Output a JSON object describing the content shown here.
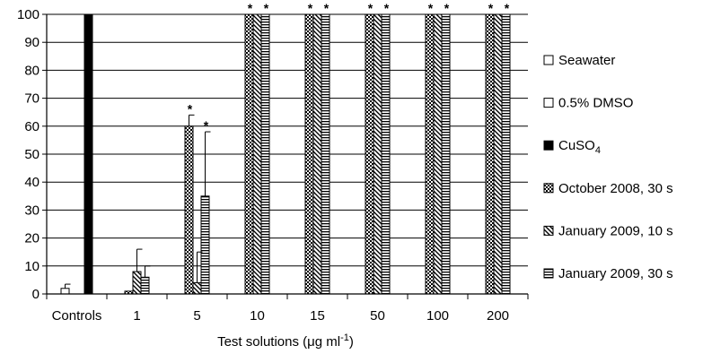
{
  "chart_data": {
    "type": "bar",
    "title": "",
    "xlabel": "Test solutions (μg ml⁻¹)",
    "xlabel_parts": {
      "main": "Test solutions (μg ml",
      "sup": "-1",
      "close": ")"
    },
    "ylabel": "",
    "ylim": [
      0,
      100
    ],
    "yticks": [
      0,
      10,
      20,
      30,
      40,
      50,
      60,
      70,
      80,
      90,
      100
    ],
    "grid": "horizontal",
    "legend_position": "right",
    "categories": [
      "Controls",
      "1",
      "5",
      "10",
      "15",
      "50",
      "100",
      "200"
    ],
    "series": [
      {
        "name": "Seawater",
        "name_main": "Seawater",
        "name_sub": "",
        "pattern": "white",
        "values": [
          2,
          null,
          null,
          null,
          null,
          null,
          null,
          null
        ],
        "errors": [
          1.5,
          null,
          null,
          null,
          null,
          null,
          null,
          null
        ]
      },
      {
        "name": "0.5% DMSO",
        "name_main": "0.5% DMSO",
        "name_sub": "",
        "pattern": "white",
        "values": [
          0,
          null,
          null,
          null,
          null,
          null,
          null,
          null
        ],
        "errors": [
          null,
          null,
          null,
          null,
          null,
          null,
          null,
          null
        ]
      },
      {
        "name": "CuSO4",
        "name_main": "CuSO",
        "name_sub": "4",
        "pattern": "black",
        "values": [
          100,
          null,
          null,
          null,
          null,
          null,
          null,
          null
        ],
        "errors": [
          null,
          null,
          null,
          null,
          null,
          null,
          null,
          null
        ]
      },
      {
        "name": "October 2008, 30 s",
        "name_main": "October 2008, 30 s",
        "name_sub": "",
        "pattern": "checker",
        "values": [
          null,
          1,
          60,
          100,
          100,
          100,
          100,
          100
        ],
        "errors": [
          null,
          null,
          4,
          null,
          null,
          null,
          null,
          null
        ]
      },
      {
        "name": "January 2009, 10 s",
        "name_main": "January 2009, 10 s",
        "name_sub": "",
        "pattern": "diagonal",
        "values": [
          null,
          8,
          4,
          100,
          100,
          100,
          100,
          100
        ],
        "errors": [
          null,
          8,
          11,
          null,
          null,
          null,
          null,
          null
        ]
      },
      {
        "name": "January 2009, 30 s",
        "name_main": "January 2009, 30 s",
        "name_sub": "",
        "pattern": "hstripe",
        "values": [
          null,
          6,
          35,
          100,
          100,
          100,
          100,
          100
        ],
        "errors": [
          null,
          4,
          23,
          null,
          null,
          null,
          null,
          null
        ]
      }
    ],
    "annotations": [
      {
        "category": "5",
        "series": "October 2008, 30 s",
        "text": "*"
      },
      {
        "category": "5",
        "series": "January 2009, 30 s",
        "text": "*"
      },
      {
        "category": "10",
        "series": "October 2008, 30 s",
        "text": "*"
      },
      {
        "category": "10",
        "series": "January 2009, 30 s",
        "text": "*"
      },
      {
        "category": "15",
        "series": "October 2008, 30 s",
        "text": "*"
      },
      {
        "category": "15",
        "series": "January 2009, 30 s",
        "text": "*"
      },
      {
        "category": "50",
        "series": "October 2008, 30 s",
        "text": "*"
      },
      {
        "category": "50",
        "series": "January 2009, 30 s",
        "text": "*"
      },
      {
        "category": "100",
        "series": "October 2008, 30 s",
        "text": "*"
      },
      {
        "category": "100",
        "series": "January 2009, 30 s",
        "text": "*"
      },
      {
        "category": "200",
        "series": "October 2008, 30 s",
        "text": "*"
      },
      {
        "category": "200",
        "series": "January 2009, 30 s",
        "text": "*"
      }
    ]
  }
}
